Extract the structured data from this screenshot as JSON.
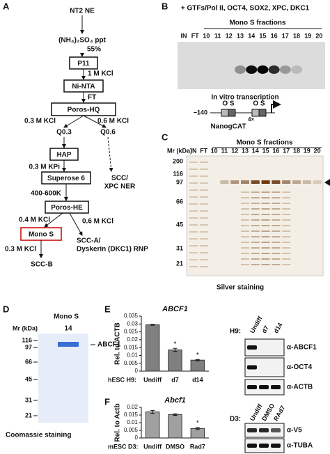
{
  "panel_labels": [
    "A",
    "B",
    "C",
    "D",
    "E",
    "F"
  ],
  "A": {
    "start": "NT2 NE",
    "ppt": "(NH₄)₂SO₄ ppt",
    "ppt_pct": "55%",
    "boxes": [
      "P11",
      "Ni-NTA",
      "Poros-HQ",
      "HAP",
      "Superose 6",
      "Poros-HE",
      "Mono S"
    ],
    "steps": [
      "1 M KCl",
      "FT",
      "0.3 M KCl",
      "0.6 M KCl",
      "0.3 M KPi",
      "400-600K",
      "0.4 M KCl",
      "0.6 M KCl",
      "0.3 M KCl"
    ],
    "fractions": [
      "Q0.3",
      "Q0.6"
    ],
    "products": [
      "SCC/",
      "XPC NER",
      "SCC-A/",
      "Dyskerin (DKC1) RNP",
      "SCC-B"
    ]
  },
  "B": {
    "header": "+ GTFs/Pol II, OCT4, SOX2, XPC, DKC1",
    "group": "Mono S fractions",
    "lanes": [
      "IN",
      "FT",
      "10",
      "11",
      "12",
      "13",
      "14",
      "15",
      "16",
      "17",
      "18",
      "19",
      "20"
    ],
    "assay": "In vitro transcription",
    "position": "−140",
    "sites": [
      "O S",
      "O S"
    ],
    "reporter": "NanogCAT",
    "repeat": "4×"
  },
  "C": {
    "group": "Mono S fractions",
    "mr": "Mr (kDa)",
    "lanes": [
      "IN",
      "FT",
      "10",
      "11",
      "12",
      "13",
      "14",
      "15",
      "16",
      "17",
      "18",
      "19",
      "20"
    ],
    "markers": [
      200,
      116,
      97,
      66,
      45,
      31,
      21
    ],
    "stain": "Silver staining"
  },
  "D": {
    "group": "Mono S",
    "mr": "Mr (kDa)",
    "lane": "14",
    "markers": [
      116,
      97,
      66,
      45,
      31,
      21
    ],
    "band": "ABCF1",
    "stain": "Coomassie staining"
  },
  "E": {
    "chart": {
      "type": "bar",
      "title": "ABCF1",
      "ylabel": "Rel. to ACTB",
      "xlabel": "hESC H9:",
      "categories": [
        "Undiff",
        "d7",
        "d14"
      ],
      "values": [
        0.0295,
        0.0135,
        0.007
      ],
      "errors": [
        0.0003,
        0.001,
        0.0004
      ],
      "significance": [
        null,
        "*",
        "*"
      ],
      "color": "#808080",
      "ylim": [
        0,
        0.035
      ],
      "yticks": [
        0,
        0.005,
        0.01,
        0.015,
        0.02,
        0.025,
        0.03,
        0.035
      ]
    },
    "blot": {
      "cell": "H9:",
      "lanes": [
        "Undiff",
        "d7",
        "d14"
      ],
      "antibodies": [
        "α-ABCF1",
        "α-OCT4",
        "α-ACTB"
      ]
    }
  },
  "F": {
    "chart": {
      "type": "bar",
      "title": "Abcf1",
      "ylabel": "Rel. to Actb",
      "xlabel": "mESC D3:",
      "categories": [
        "Undiff",
        "DMSO",
        "Rad7"
      ],
      "values": [
        0.017,
        0.0153,
        0.0062
      ],
      "errors": [
        0.001,
        0.0005,
        0.0007
      ],
      "significance": [
        null,
        null,
        "*"
      ],
      "color": "#a0a0a0",
      "ylim": [
        0,
        0.02
      ],
      "yticks": [
        0,
        0.005,
        0.01,
        0.015,
        0.02
      ]
    },
    "blot": {
      "cell": "D3:",
      "lanes": [
        "Undiff",
        "DMSO",
        "RAd7"
      ],
      "antibodies": [
        "α-V5",
        "α-TUBA"
      ]
    }
  }
}
